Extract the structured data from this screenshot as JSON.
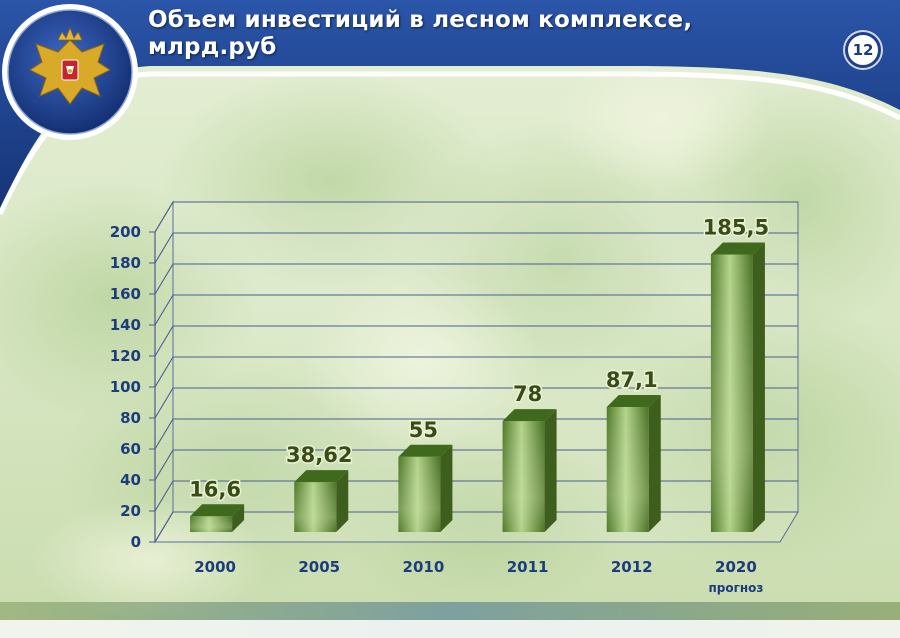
{
  "slide": {
    "title_line_1": "Объем инвестиций в лесном комплексе,",
    "title_line_2": "млрд.руб",
    "number": "12",
    "emblem": "coat-of-arms-of-russia"
  },
  "colors": {
    "header": "#1f3f86",
    "bar": "#5f8a32",
    "label": "#1d3c7c",
    "data_label": "#3a4a1a"
  },
  "chart_data": {
    "type": "bar",
    "categories": [
      "2000",
      "2005",
      "2010",
      "2011",
      "2012",
      "2020"
    ],
    "category_sublabels": [
      "",
      "",
      "",
      "",
      "",
      "прогноз"
    ],
    "values": [
      16.6,
      38.62,
      55,
      78,
      87.1,
      185.5
    ],
    "data_labels": [
      "16,6",
      "38,62",
      "55",
      "78",
      "87,1",
      "185,5"
    ],
    "y_ticks": [
      "0",
      "20",
      "40",
      "60",
      "80",
      "100",
      "120",
      "140",
      "160",
      "180",
      "200"
    ],
    "ylim": [
      0,
      200
    ],
    "grid": true,
    "style": "3d-column"
  }
}
